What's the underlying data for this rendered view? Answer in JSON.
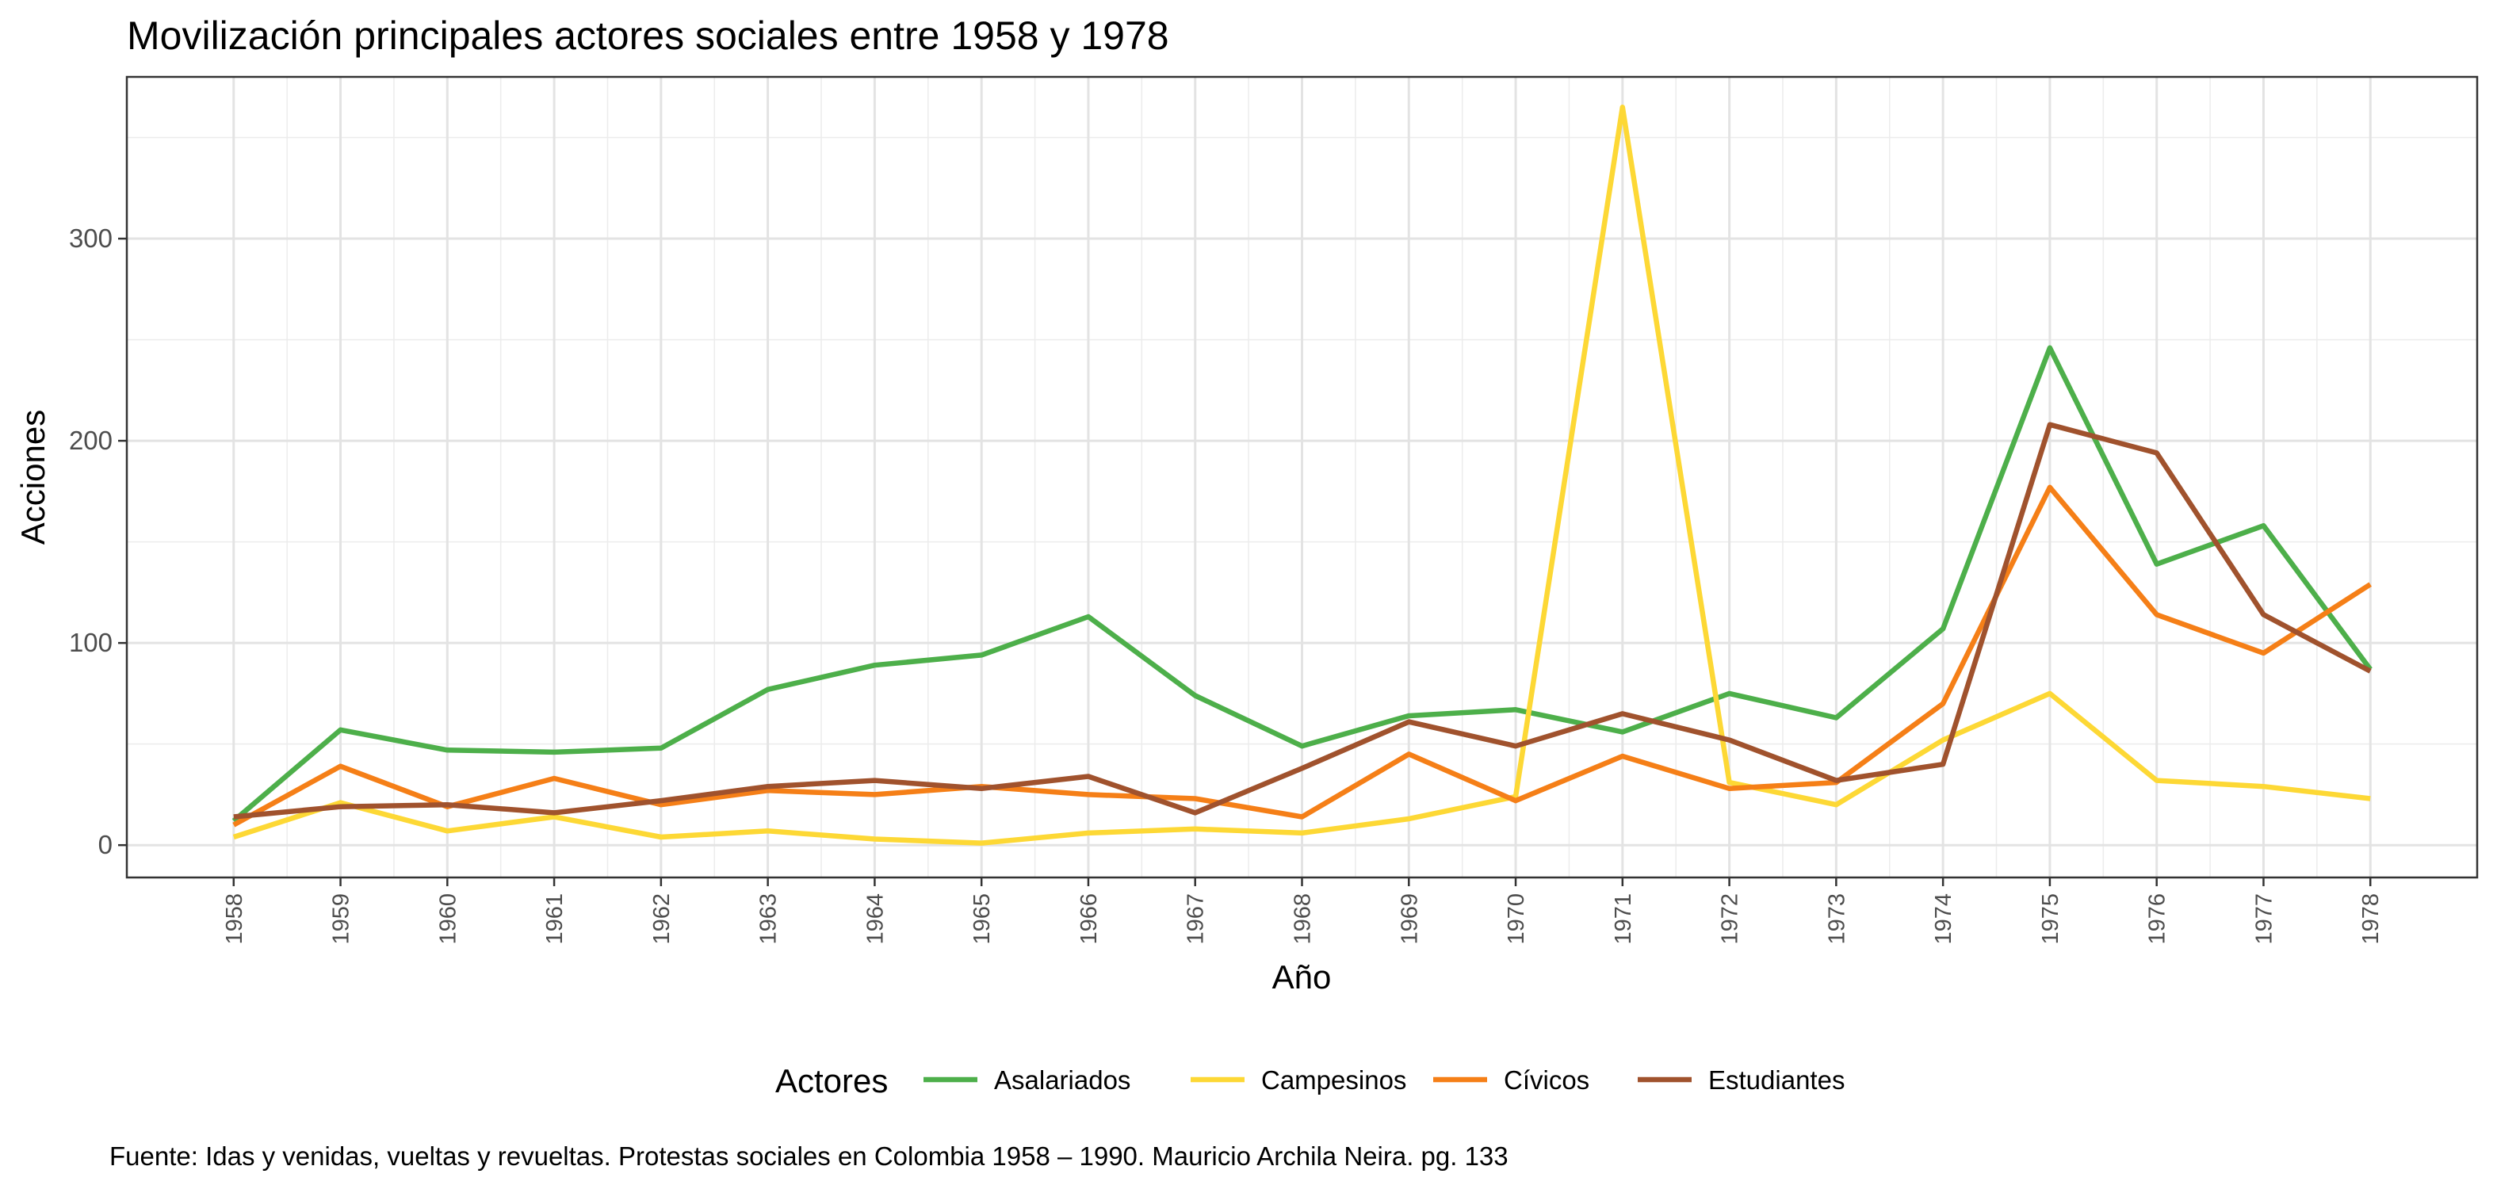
{
  "chart_data": {
    "type": "line",
    "title": "Movilización principales actores sociales entre 1958 y 1978",
    "xlabel": "Año",
    "ylabel": "Acciones",
    "x": [
      1958,
      1959,
      1960,
      1961,
      1962,
      1963,
      1964,
      1965,
      1966,
      1967,
      1968,
      1969,
      1970,
      1971,
      1972,
      1973,
      1974,
      1975,
      1976,
      1977,
      1978
    ],
    "x_tick_labels": [
      "1958",
      "1959",
      "1960",
      "1961",
      "1962",
      "1963",
      "1964",
      "1965",
      "1966",
      "1967",
      "1968",
      "1969",
      "1970",
      "1971",
      "1972",
      "1973",
      "1974",
      "1975",
      "1976",
      "1977",
      "1978"
    ],
    "ylim": [
      -16,
      380
    ],
    "y_ticks": [
      0,
      100,
      200,
      300
    ],
    "y_tick_labels": [
      "0",
      "100",
      "200",
      "300"
    ],
    "grid": true,
    "legend_title": "Actores",
    "legend_position": "bottom",
    "series": [
      {
        "name": "Asalariados",
        "color": "#4daf4a",
        "values": [
          12,
          57,
          47,
          46,
          48,
          77,
          89,
          94,
          113,
          74,
          49,
          64,
          67,
          56,
          75,
          63,
          107,
          246,
          139,
          158,
          87
        ]
      },
      {
        "name": "Campesinos",
        "color": "#fdd835",
        "values": [
          4,
          21,
          7,
          14,
          4,
          7,
          3,
          1,
          6,
          8,
          6,
          13,
          24,
          365,
          31,
          20,
          52,
          75,
          32,
          29,
          23
        ]
      },
      {
        "name": "Cívicos",
        "color": "#f57f17",
        "values": [
          10,
          39,
          19,
          33,
          20,
          27,
          25,
          29,
          25,
          23,
          14,
          45,
          22,
          44,
          28,
          31,
          70,
          177,
          114,
          95,
          129
        ]
      },
      {
        "name": "Estudiantes",
        "color": "#a0522d",
        "values": [
          14,
          19,
          20,
          16,
          22,
          29,
          32,
          28,
          34,
          16,
          38,
          61,
          49,
          65,
          52,
          32,
          40,
          208,
          194,
          114,
          86
        ]
      }
    ],
    "caption": "Fuente: Idas y venidas, vueltas y revueltas. Protestas sociales en Colombia 1958 – 1990. Mauricio Archila Neira. pg. 133"
  }
}
